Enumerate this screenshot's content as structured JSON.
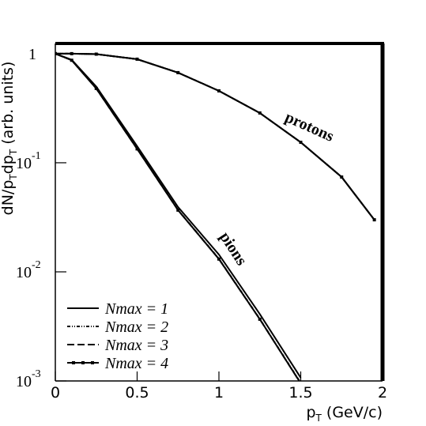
{
  "chart_data": {
    "type": "line",
    "y_label_parts": [
      "dN/p",
      "T",
      "dp",
      "T",
      " (arb. units)"
    ],
    "x_label_parts": [
      "p",
      "T",
      " (GeV/c)"
    ],
    "annotations": [
      "protons",
      "pions"
    ],
    "x": [
      0,
      0.1,
      0.25,
      0.5,
      0.75,
      1,
      1.25,
      1.5,
      1.75,
      1.95
    ],
    "series": [
      {
        "name": "Nmax = 1",
        "color": "#000000",
        "dash": "none",
        "markers": false,
        "pions": [
          1,
          0.88,
          0.5,
          0.142,
          0.0393,
          0.0144,
          0.0041,
          0.00107,
          null,
          null
        ],
        "protons": [
          1,
          1,
          0.99,
          0.89,
          0.67,
          0.456,
          0.286,
          0.154,
          0.074,
          0.03
        ]
      },
      {
        "name": "Nmax = 2",
        "color": "#000000",
        "dash": "4 2 1 2 1 2",
        "markers": false,
        "pions": [
          1,
          0.87,
          0.48,
          0.135,
          0.037,
          0.0132,
          0.0037,
          0.00096,
          null,
          null
        ],
        "protons": [
          1,
          1,
          0.99,
          0.89,
          0.67,
          0.456,
          0.286,
          0.154,
          0.074,
          0.03
        ]
      },
      {
        "name": "Nmax = 3",
        "color": "#000000",
        "dash": "9 4",
        "markers": false,
        "pions": [
          1,
          0.87,
          0.48,
          0.134,
          0.0368,
          0.0131,
          0.00368,
          0.00095,
          null,
          null
        ],
        "protons": [
          1,
          1,
          0.99,
          0.89,
          0.67,
          0.456,
          0.286,
          0.154,
          0.074,
          0.03
        ]
      },
      {
        "name": "Nmax = 4",
        "color": "#000000",
        "dash": "none",
        "markers": true,
        "pions": [
          1,
          0.87,
          0.48,
          0.134,
          0.0368,
          0.0131,
          0.00368,
          0.00095,
          null,
          null
        ],
        "protons": [
          1,
          1,
          0.99,
          0.89,
          0.67,
          0.456,
          0.286,
          0.154,
          0.074,
          0.03
        ]
      }
    ],
    "xlim": [
      0,
      2
    ],
    "xticks": [
      0,
      0.5,
      1,
      1.5,
      2
    ],
    "ylim": [
      0.001,
      1.24
    ],
    "ylog": true,
    "yticks": [
      {
        "value": 0.001,
        "label": "10",
        "exponent": "-3"
      },
      {
        "value": 0.01,
        "label": "10",
        "exponent": "-2"
      },
      {
        "value": 0.1,
        "label": "10",
        "exponent": "-1"
      },
      1
    ],
    "legend": "bottom-left"
  }
}
